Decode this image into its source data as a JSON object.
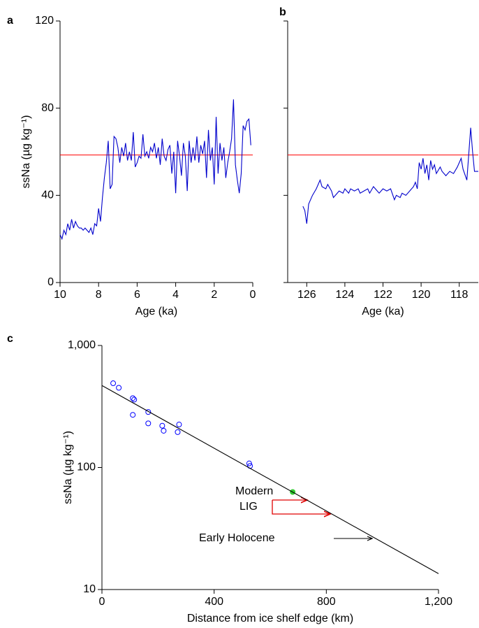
{
  "chart_data": [
    {
      "type": "line",
      "panel_label": "a",
      "xlabel": "Age (ka)",
      "ylabel": "ssNa (µg kg⁻¹)",
      "xlim": [
        10,
        0
      ],
      "xticks": [
        10,
        8,
        6,
        4,
        2,
        0
      ],
      "ylim": [
        0,
        120
      ],
      "yticks": [
        0,
        40,
        80,
        120
      ],
      "show_ytick_labels": true,
      "reference_line": {
        "value": 58.5,
        "color": "#ff0000"
      },
      "series": [
        {
          "color": "#0000cc",
          "x": [
            10.0,
            9.9,
            9.8,
            9.7,
            9.6,
            9.5,
            9.4,
            9.3,
            9.2,
            9.1,
            9.0,
            8.9,
            8.8,
            8.7,
            8.6,
            8.5,
            8.4,
            8.3,
            8.2,
            8.1,
            8.0,
            7.9,
            7.8,
            7.7,
            7.6,
            7.5,
            7.4,
            7.3,
            7.2,
            7.1,
            7.0,
            6.9,
            6.8,
            6.7,
            6.6,
            6.5,
            6.4,
            6.3,
            6.2,
            6.1,
            6.0,
            5.9,
            5.8,
            5.7,
            5.6,
            5.5,
            5.4,
            5.3,
            5.2,
            5.1,
            5.0,
            4.9,
            4.8,
            4.7,
            4.6,
            4.5,
            4.4,
            4.3,
            4.2,
            4.1,
            4.0,
            3.9,
            3.8,
            3.7,
            3.6,
            3.5,
            3.4,
            3.3,
            3.2,
            3.1,
            3.0,
            2.9,
            2.8,
            2.7,
            2.6,
            2.5,
            2.4,
            2.3,
            2.2,
            2.1,
            2.0,
            1.9,
            1.8,
            1.7,
            1.6,
            1.5,
            1.4,
            1.3,
            1.2,
            1.1,
            1.0,
            0.9,
            0.8,
            0.7,
            0.6,
            0.5,
            0.4,
            0.3,
            0.2,
            0.1
          ],
          "values": [
            22,
            20,
            24,
            22,
            27,
            24,
            29,
            25,
            28,
            26,
            25,
            25,
            24,
            25,
            24,
            23,
            25,
            22,
            27,
            26,
            34,
            28,
            39,
            48,
            55,
            65,
            43,
            45,
            67,
            66,
            62,
            55,
            62,
            58,
            64,
            56,
            60,
            56,
            69,
            53,
            55,
            58,
            57,
            68,
            58,
            60,
            57,
            62,
            60,
            64,
            57,
            62,
            54,
            66,
            58,
            56,
            61,
            63,
            50,
            60,
            41,
            65,
            58,
            49,
            64,
            58,
            42,
            65,
            55,
            62,
            56,
            67,
            55,
            63,
            59,
            65,
            48,
            70,
            56,
            62,
            45,
            76,
            50,
            64,
            56,
            62,
            48,
            55,
            60,
            66,
            84,
            54,
            47,
            41,
            50,
            72,
            70,
            74,
            75,
            63
          ]
        }
      ]
    },
    {
      "type": "line",
      "panel_label": "b",
      "xlabel": "Age (ka)",
      "xlim": [
        127,
        117
      ],
      "xticks": [
        126,
        124,
        122,
        120,
        118
      ],
      "ylim": [
        0,
        120
      ],
      "yticks": [
        0,
        40,
        80,
        120
      ],
      "show_ytick_labels": false,
      "reference_line": {
        "value": 58.5,
        "color": "#ff0000"
      },
      "series": [
        {
          "color": "#0000cc",
          "x": [
            126.2,
            126.1,
            126.0,
            125.9,
            125.7,
            125.5,
            125.3,
            125.2,
            125.0,
            124.9,
            124.7,
            124.6,
            124.5,
            124.3,
            124.1,
            124.0,
            123.8,
            123.7,
            123.5,
            123.3,
            123.2,
            123.0,
            122.8,
            122.7,
            122.5,
            122.3,
            122.2,
            122.0,
            121.8,
            121.6,
            121.4,
            121.3,
            121.1,
            121.0,
            120.8,
            120.6,
            120.4,
            120.3,
            120.2,
            120.1,
            120.0,
            119.9,
            119.8,
            119.7,
            119.6,
            119.5,
            119.4,
            119.3,
            119.2,
            119.0,
            118.9,
            118.7,
            118.5,
            118.3,
            118.1,
            117.9,
            117.8,
            117.6,
            117.4,
            117.3,
            117.2,
            117.0
          ],
          "values": [
            35,
            33,
            27,
            36,
            40,
            43,
            47,
            44,
            43,
            45,
            42,
            39,
            40,
            42,
            41,
            43,
            41,
            43,
            42,
            43,
            41,
            42,
            43,
            41,
            44,
            42,
            41,
            43,
            42,
            43,
            38,
            40,
            39,
            41,
            40,
            42,
            44,
            46,
            43,
            55,
            52,
            57,
            50,
            54,
            47,
            56,
            52,
            54,
            50,
            53,
            51,
            49,
            51,
            50,
            53,
            57,
            52,
            47,
            71,
            60,
            51,
            51
          ]
        }
      ]
    },
    {
      "type": "scatter",
      "panel_label": "c",
      "xlabel": "Distance from ice shelf edge (km)",
      "ylabel": "ssNa (µg kg⁻¹)",
      "log_y": true,
      "xlim": [
        0,
        1200
      ],
      "xticks": [
        0,
        400,
        800,
        {
          "value": 1200,
          "label": "1,200"
        }
      ],
      "ylim": [
        10,
        1000
      ],
      "yticks": [
        10,
        100,
        {
          "value": 1000,
          "label": "1,000"
        }
      ],
      "series": [
        {
          "type": "scatter",
          "marker": "open",
          "color": "#0000ff",
          "x": [
            40,
            60,
            110,
            115,
            110,
            165,
            165,
            215,
            220,
            270,
            275,
            525,
            528
          ],
          "values": [
            490,
            450,
            370,
            360,
            270,
            285,
            230,
            220,
            200,
            195,
            225,
            108,
            103
          ]
        },
        {
          "type": "scatter",
          "marker": "filled",
          "color": "#33cc33",
          "x": [
            680
          ],
          "values": [
            63
          ]
        },
        {
          "type": "line",
          "color": "#000000",
          "x": [
            0,
            1200
          ],
          "values": [
            470,
            13.5
          ]
        }
      ],
      "annotations": [
        "Modern",
        "LIG",
        "Early Holocene"
      ]
    }
  ]
}
